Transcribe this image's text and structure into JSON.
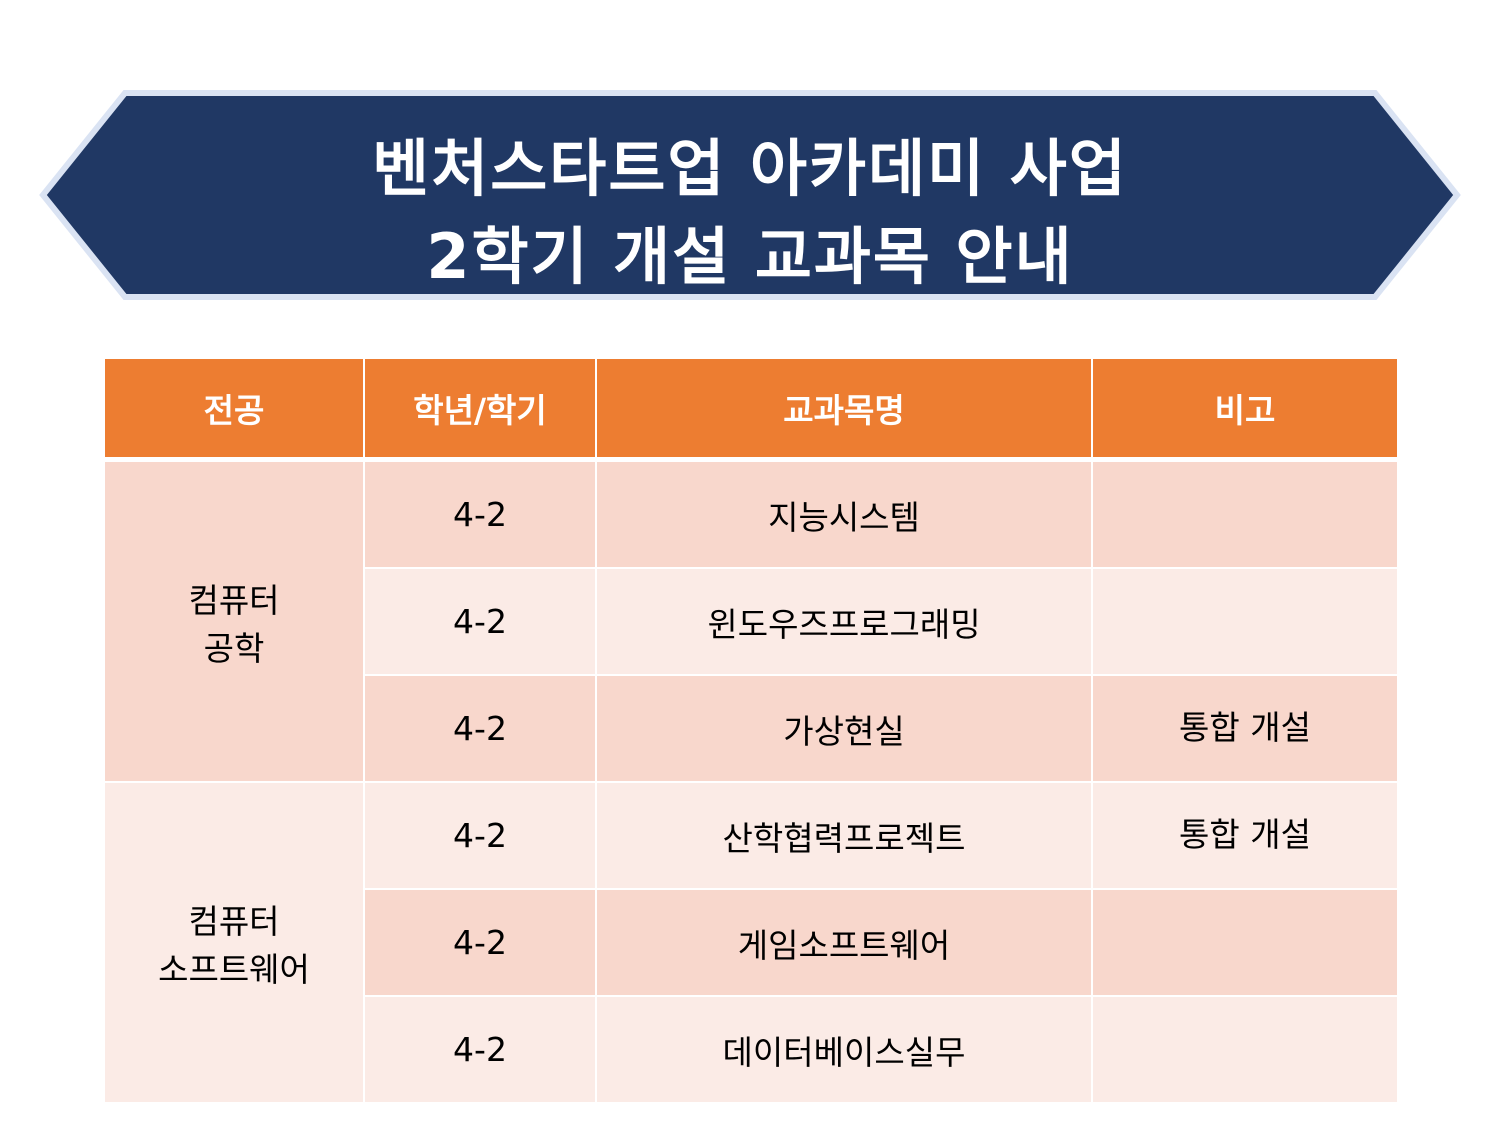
{
  "banner": {
    "title_line1": "벤처스타트업 아카데미 사업",
    "title_line2": "2학기 개설 교과목 안내",
    "colors": {
      "fill": "#203864",
      "outline": "#dae3f3"
    }
  },
  "table": {
    "header_color": "#ed7d31",
    "row_colors": [
      "#f8d7cc",
      "#fbebe6"
    ],
    "headers": [
      "전공",
      "학년/학기",
      "교과목명",
      "비고"
    ],
    "groups": [
      {
        "major": "컴퓨터\n공학",
        "major_lines": [
          "컴퓨터",
          "공학"
        ],
        "rows": [
          {
            "grade": "4-2",
            "course": "지능시스템",
            "note": ""
          },
          {
            "grade": "4-2",
            "course": "윈도우즈프로그래밍",
            "note": ""
          },
          {
            "grade": "4-2",
            "course": "가상현실",
            "note": "통합 개설"
          }
        ]
      },
      {
        "major_lines": [
          "컴퓨터",
          "소프트웨어"
        ],
        "rows": [
          {
            "grade": "4-2",
            "course": "산학협력프로젝트",
            "note": "통합 개설"
          },
          {
            "grade": "4-2",
            "course": "게임소프트웨어",
            "note": ""
          },
          {
            "grade": "4-2",
            "course": "데이터베이스실무",
            "note": ""
          }
        ]
      }
    ]
  }
}
